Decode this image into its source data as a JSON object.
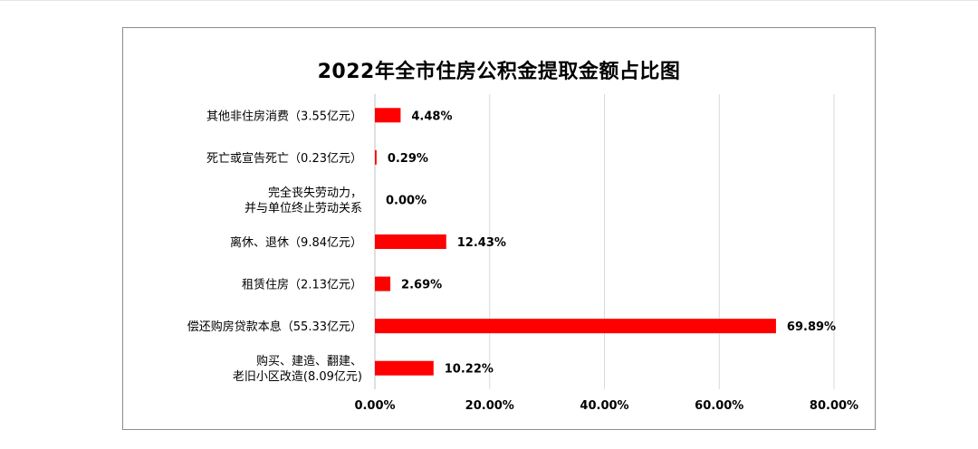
{
  "chart_data": {
    "type": "bar",
    "orientation": "horizontal",
    "title": "2022年全市住房公积金提取金额占比图",
    "categories": [
      [
        "其他非住房消费（3.55亿元）"
      ],
      [
        "死亡或宣告死亡（0.23亿元）"
      ],
      [
        "完全丧失劳动力，",
        "并与单位终止劳动关系"
      ],
      [
        "离休、退休（9.84亿元）"
      ],
      [
        "租赁住房（2.13亿元）"
      ],
      [
        "偿还购房贷款本息（55.33亿元）"
      ],
      [
        "购买、建造、翻建、",
        "老旧小区改造(8.09亿元)"
      ]
    ],
    "values": [
      4.48,
      0.29,
      0.0,
      12.43,
      2.69,
      69.89,
      10.22
    ],
    "value_labels": [
      "4.48%",
      "0.29%",
      "0.00%",
      "12.43%",
      "2.69%",
      "69.89%",
      "10.22%"
    ],
    "xlim": [
      0,
      80
    ],
    "xticks": [
      "0.00%",
      "20.00%",
      "40.00%",
      "60.00%",
      "80.00%"
    ],
    "grid": true,
    "bar_color": "#ff0000"
  }
}
